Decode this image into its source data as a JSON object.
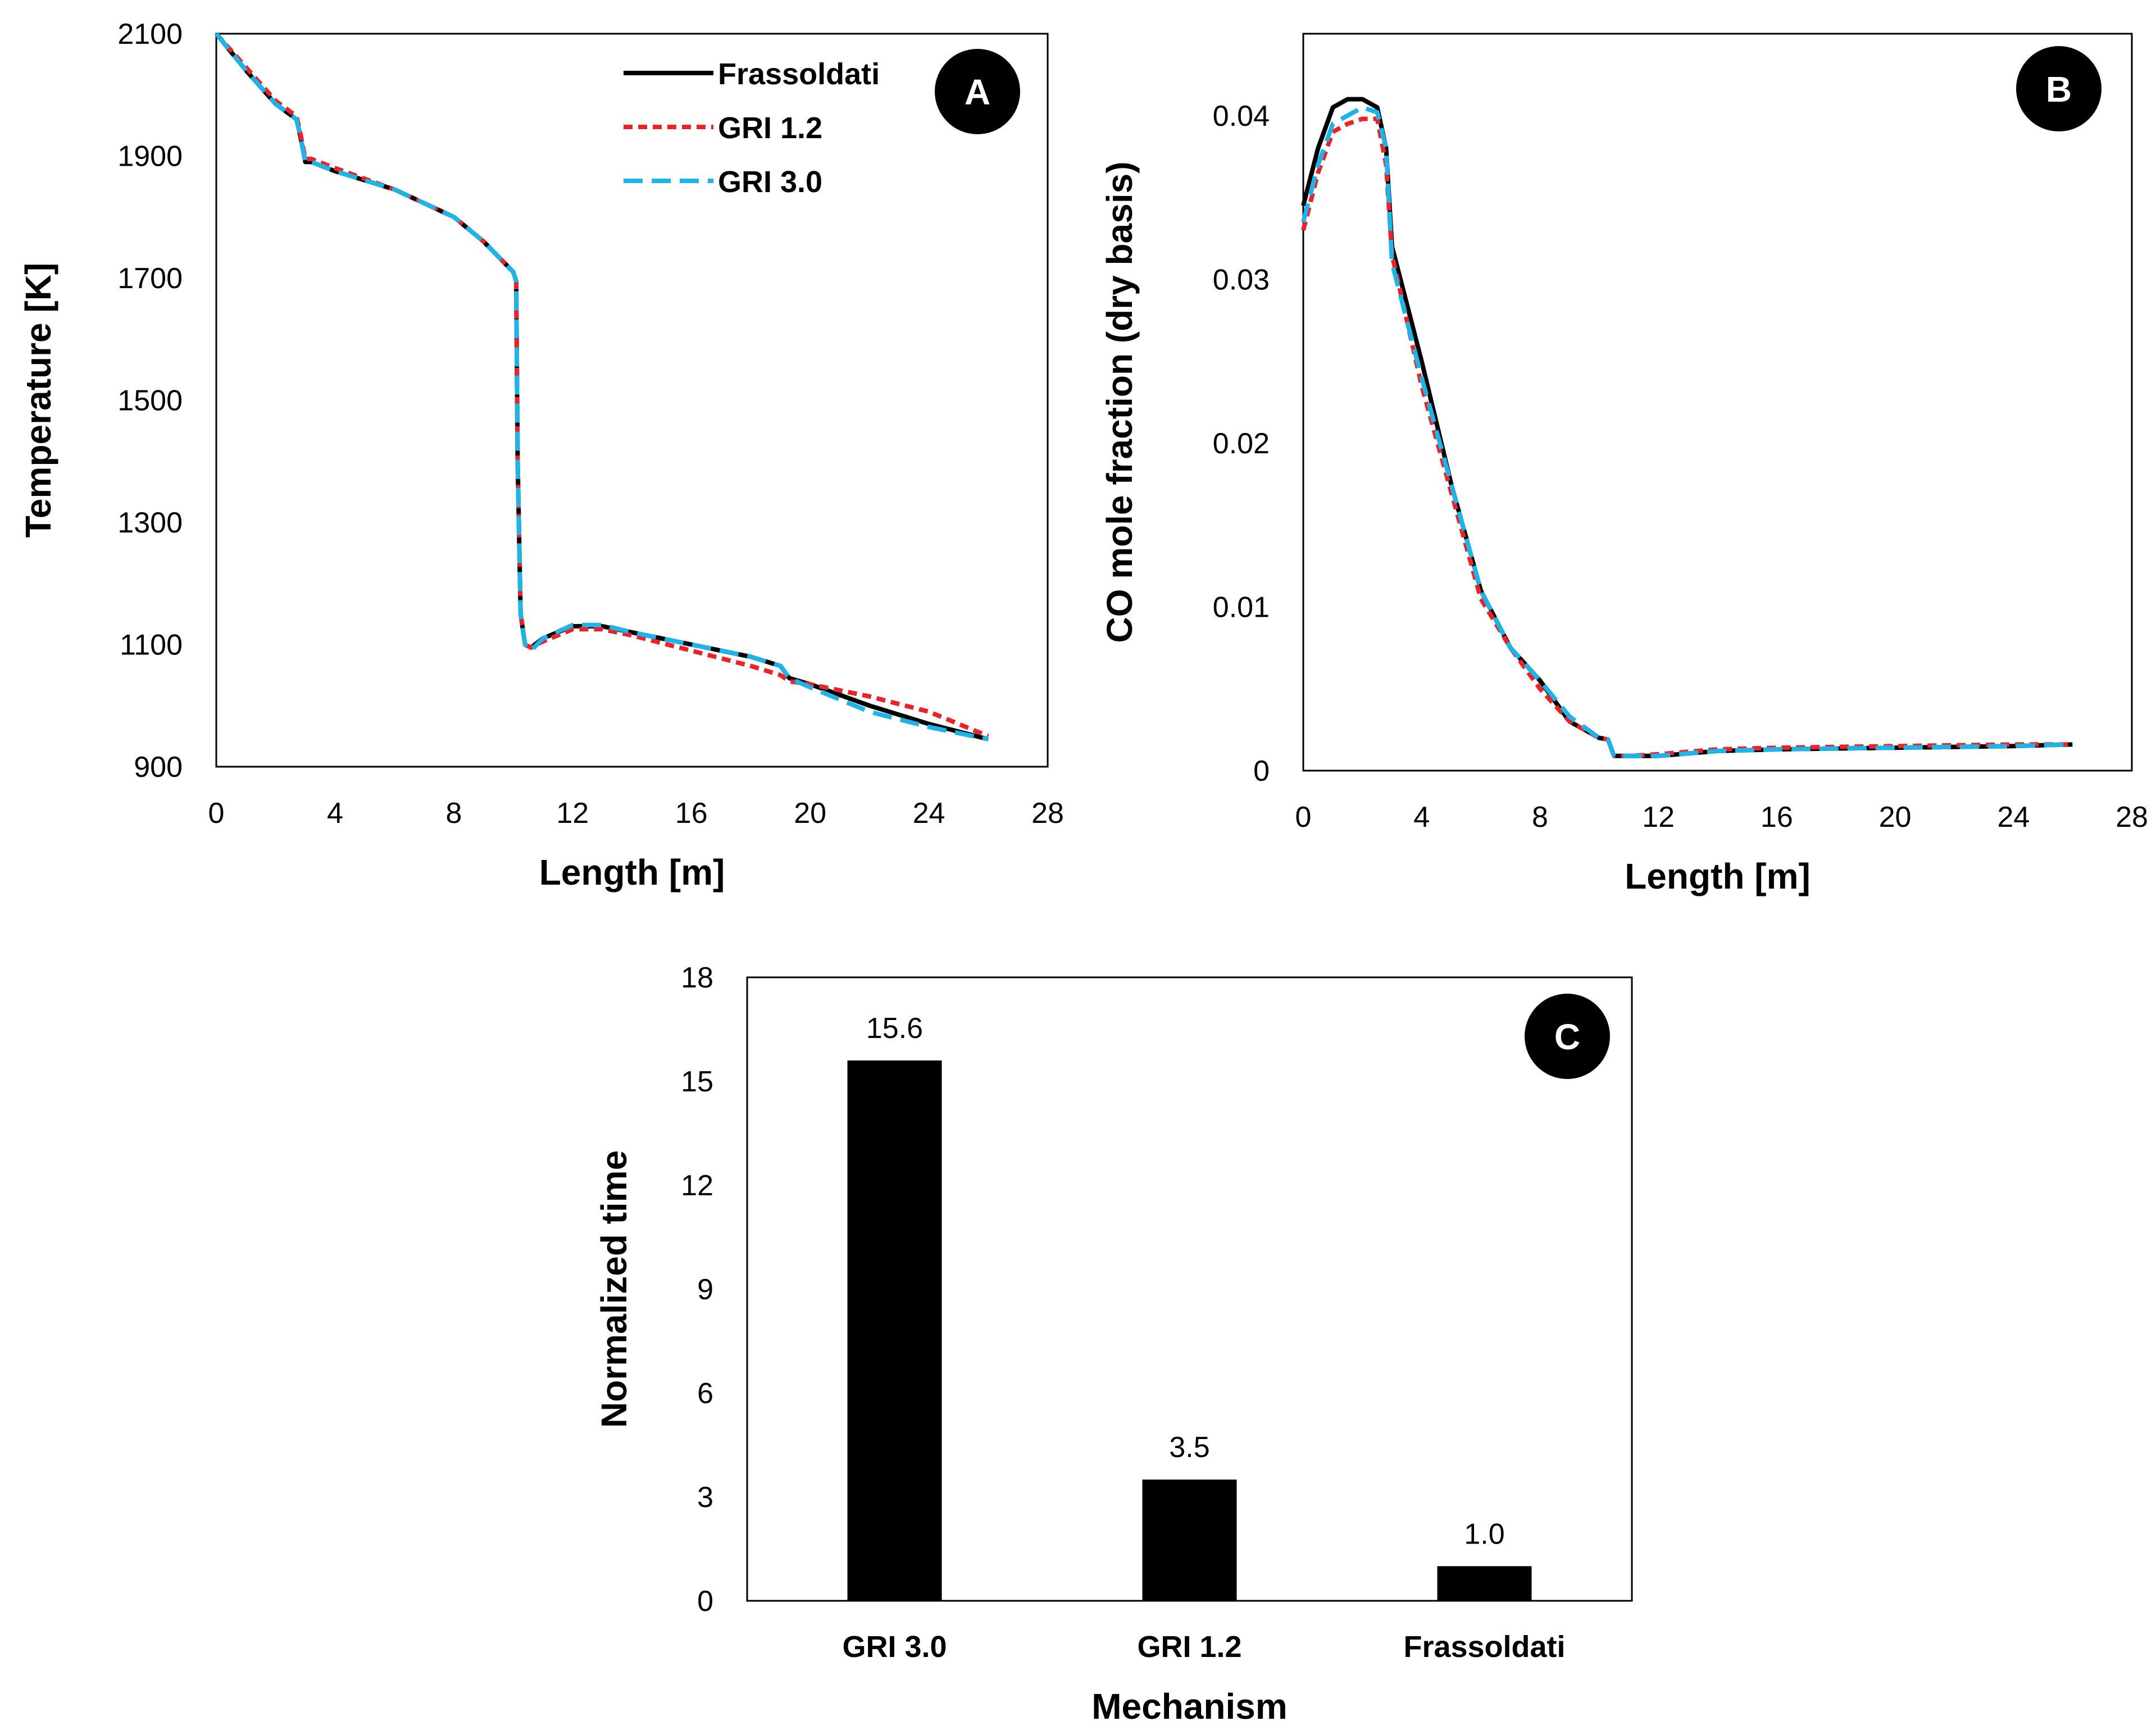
{
  "colors": {
    "black": "#000000",
    "red": "#e8242b",
    "blue": "#1fb3e6"
  },
  "chart_data": [
    {
      "id": "A",
      "type": "line",
      "badge": "A",
      "xlabel": "Length [m]",
      "ylabel": "Temperature [K]",
      "xlim": [
        0,
        28
      ],
      "ylim": [
        900,
        2100
      ],
      "xticks": [
        0,
        4,
        8,
        12,
        16,
        20,
        24,
        28
      ],
      "yticks": [
        900,
        1100,
        1300,
        1500,
        1700,
        1900,
        2100
      ],
      "grid": false,
      "legend_position": "top-right",
      "series": [
        {
          "name": "Frassoldati",
          "color": "#000000",
          "dash": "solid",
          "x": [
            0,
            1,
            2,
            2.7,
            2.8,
            3.0,
            3.2,
            4,
            6,
            8,
            9,
            10,
            10.1,
            10.15,
            10.25,
            10.4,
            10.6,
            11,
            12,
            13,
            14,
            16,
            18,
            19,
            19.3,
            20,
            22,
            24,
            26
          ],
          "y": [
            2100,
            2040,
            1985,
            1960,
            1940,
            1890,
            1890,
            1875,
            1845,
            1800,
            1760,
            1710,
            1695,
            1400,
            1150,
            1100,
            1095,
            1110,
            1130,
            1130,
            1120,
            1100,
            1080,
            1065,
            1045,
            1035,
            1000,
            970,
            945
          ]
        },
        {
          "name": "GRI 1.2",
          "color": "#e8242b",
          "dash": "short",
          "x": [
            0,
            1,
            2,
            2.7,
            2.8,
            3.0,
            3.2,
            4,
            6,
            8,
            9,
            10,
            10.1,
            10.15,
            10.25,
            10.4,
            10.6,
            11,
            12,
            13,
            14,
            16,
            18,
            19,
            19.3,
            20,
            22,
            24,
            26
          ],
          "y": [
            2100,
            2045,
            1990,
            1965,
            1945,
            1895,
            1895,
            1880,
            1845,
            1800,
            1760,
            1710,
            1695,
            1400,
            1150,
            1100,
            1095,
            1105,
            1125,
            1125,
            1115,
            1090,
            1065,
            1050,
            1040,
            1035,
            1015,
            990,
            950
          ]
        },
        {
          "name": "GRI 3.0",
          "color": "#1fb3e6",
          "dash": "long",
          "x": [
            0,
            1,
            2,
            2.7,
            2.8,
            3.0,
            3.2,
            4,
            6,
            8,
            9,
            10,
            10.1,
            10.15,
            10.25,
            10.4,
            10.6,
            11,
            12,
            13,
            14,
            16,
            18,
            19,
            19.3,
            20,
            21,
            22,
            24,
            25,
            26
          ],
          "y": [
            2100,
            2040,
            1985,
            1960,
            1940,
            1890,
            1890,
            1875,
            1845,
            1800,
            1760,
            1710,
            1695,
            1400,
            1150,
            1100,
            1090,
            1110,
            1132,
            1132,
            1120,
            1100,
            1080,
            1065,
            1045,
            1030,
            1010,
            990,
            965,
            955,
            945
          ]
        }
      ]
    },
    {
      "id": "B",
      "type": "line",
      "badge": "B",
      "xlabel": "Length [m]",
      "ylabel": "CO mole fraction (dry basis)",
      "xlim": [
        0,
        28
      ],
      "ylim": [
        0,
        0.045
      ],
      "xticks": [
        0,
        4,
        8,
        12,
        16,
        20,
        24,
        28
      ],
      "yticks": [
        0,
        0.01,
        0.02,
        0.03,
        0.04
      ],
      "ytick_labels": [
        "0",
        "0.01",
        "0.02",
        "0.03",
        "0.04"
      ],
      "grid": false,
      "series": [
        {
          "name": "Frassoldati",
          "color": "#000000",
          "dash": "solid",
          "x": [
            0,
            0.5,
            1,
            1.5,
            2,
            2.5,
            2.8,
            3,
            4,
            5,
            6,
            7,
            8,
            9,
            10,
            10.3,
            10.5,
            11,
            12,
            14,
            16,
            20,
            24,
            26
          ],
          "y": [
            0.0345,
            0.038,
            0.0405,
            0.041,
            0.041,
            0.0405,
            0.038,
            0.032,
            0.025,
            0.0175,
            0.011,
            0.0075,
            0.0055,
            0.003,
            0.002,
            0.0019,
            0.0009,
            0.0009,
            0.0009,
            0.0012,
            0.0013,
            0.0014,
            0.0015,
            0.0016
          ]
        },
        {
          "name": "GRI 1.2",
          "color": "#e8242b",
          "dash": "short",
          "x": [
            0,
            0.5,
            1,
            1.5,
            2,
            2.5,
            2.8,
            3,
            4,
            5,
            6,
            7,
            8,
            9,
            10,
            10.3,
            10.5,
            11,
            12,
            14,
            16,
            20,
            24,
            26
          ],
          "y": [
            0.033,
            0.0365,
            0.039,
            0.0395,
            0.0398,
            0.0398,
            0.037,
            0.0315,
            0.0235,
            0.017,
            0.0105,
            0.0075,
            0.005,
            0.003,
            0.002,
            0.0019,
            0.0009,
            0.0009,
            0.001,
            0.0013,
            0.0014,
            0.0015,
            0.0016,
            0.0016
          ]
        },
        {
          "name": "GRI 3.0",
          "color": "#1fb3e6",
          "dash": "long",
          "x": [
            0,
            0.5,
            1,
            1.5,
            2,
            2.5,
            2.8,
            3,
            4,
            5,
            6,
            7,
            8,
            9,
            10,
            10.3,
            10.5,
            11,
            12,
            14,
            16,
            20,
            24,
            26
          ],
          "y": [
            0.0335,
            0.037,
            0.0395,
            0.04,
            0.0405,
            0.0402,
            0.038,
            0.031,
            0.024,
            0.0175,
            0.011,
            0.0075,
            0.0055,
            0.0033,
            0.002,
            0.0019,
            0.0009,
            0.0009,
            0.0009,
            0.0012,
            0.0013,
            0.0014,
            0.0015,
            0.0016
          ]
        }
      ]
    },
    {
      "id": "C",
      "type": "bar",
      "badge": "C",
      "xlabel": "Mechanism",
      "ylabel": "Normalized time",
      "ylim": [
        0,
        18
      ],
      "yticks": [
        0,
        3,
        6,
        9,
        12,
        15,
        18
      ],
      "categories": [
        "GRI 3.0",
        "GRI 1.2",
        "Frassoldati"
      ],
      "values": [
        15.6,
        3.5,
        1.0
      ],
      "value_labels": [
        "15.6",
        "3.5",
        "1.0"
      ],
      "grid": false
    }
  ]
}
